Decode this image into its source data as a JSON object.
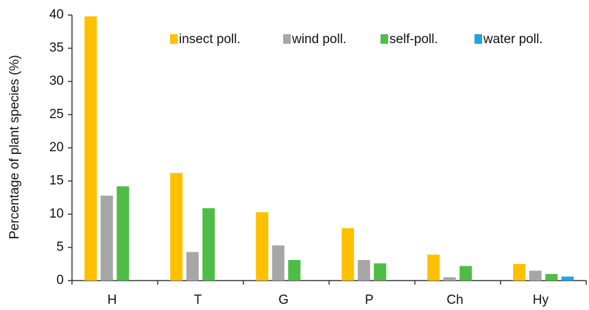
{
  "chart_data": {
    "type": "bar",
    "ylabel": "Percentage of plant species (%)",
    "categories": [
      "H",
      "T",
      "G",
      "P",
      "Ch",
      "Hy"
    ],
    "series": [
      {
        "name": "insect poll.",
        "color": "#ffc000",
        "values": [
          39.8,
          16.2,
          10.3,
          7.9,
          3.9,
          2.5
        ]
      },
      {
        "name": "wind poll.",
        "color": "#a6a6a6",
        "values": [
          12.8,
          4.3,
          5.3,
          3.1,
          0.5,
          1.5
        ]
      },
      {
        "name": "self-poll.",
        "color": "#4fbd45",
        "values": [
          14.2,
          10.9,
          3.1,
          2.6,
          2.2,
          1.0
        ]
      },
      {
        "name": "water poll.",
        "color": "#1fa5e0",
        "values": [
          0,
          0,
          0,
          0,
          0,
          0.6
        ]
      }
    ],
    "ylim": [
      0,
      40
    ],
    "yticks": [
      0,
      5,
      10,
      15,
      20,
      25,
      30,
      35,
      40
    ],
    "legend": "top-right",
    "grid": false
  }
}
